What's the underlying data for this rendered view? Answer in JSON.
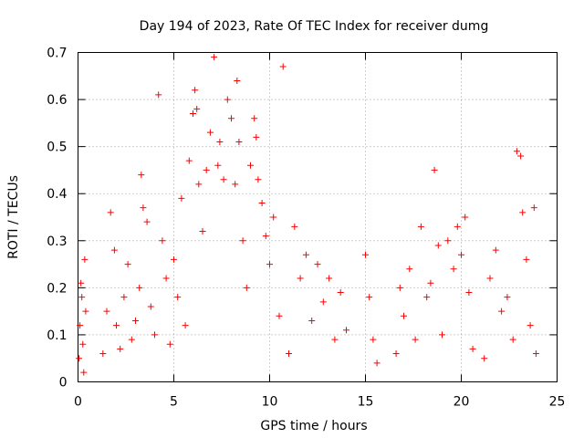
{
  "chart_data": {
    "type": "scatter",
    "title": "Day 194 of 2023, Rate Of TEC Index for receiver dumg",
    "xlabel": "GPS time / hours",
    "ylabel": "ROTI / TECUs",
    "xlim": [
      0,
      25
    ],
    "ylim": [
      0,
      0.7
    ],
    "xticks": [
      "0",
      "5",
      "10",
      "15",
      "20",
      "25"
    ],
    "yticks": [
      "0",
      "0.1",
      "0.2",
      "0.3",
      "0.4",
      "0.5",
      "0.6",
      "0.7"
    ],
    "grid": true,
    "marker": "+",
    "color": "#ff0000",
    "series": [
      {
        "points": [
          [
            0.05,
            0.05
          ],
          [
            0.1,
            0.12
          ],
          [
            0.15,
            0.21
          ],
          [
            0.2,
            0.18
          ],
          [
            0.25,
            0.08
          ],
          [
            0.3,
            0.02
          ],
          [
            0.35,
            0.26
          ],
          [
            0.4,
            0.15
          ],
          [
            1.3,
            0.06
          ],
          [
            1.5,
            0.15
          ],
          [
            1.7,
            0.36
          ],
          [
            1.9,
            0.28
          ],
          [
            2.0,
            0.12
          ],
          [
            2.2,
            0.07
          ],
          [
            2.4,
            0.18
          ],
          [
            2.6,
            0.25
          ],
          [
            2.8,
            0.09
          ],
          [
            3.0,
            0.13
          ],
          [
            3.2,
            0.2
          ],
          [
            3.3,
            0.44
          ],
          [
            3.4,
            0.37
          ],
          [
            3.6,
            0.34
          ],
          [
            3.8,
            0.16
          ],
          [
            4.0,
            0.1
          ],
          [
            4.2,
            0.61
          ],
          [
            4.4,
            0.3
          ],
          [
            4.6,
            0.22
          ],
          [
            4.8,
            0.08
          ],
          [
            5.0,
            0.26
          ],
          [
            5.2,
            0.18
          ],
          [
            5.4,
            0.39
          ],
          [
            5.6,
            0.12
          ],
          [
            5.8,
            0.47
          ],
          [
            6.0,
            0.57
          ],
          [
            6.1,
            0.62
          ],
          [
            6.2,
            0.58
          ],
          [
            6.3,
            0.42
          ],
          [
            6.5,
            0.32
          ],
          [
            6.7,
            0.45
          ],
          [
            6.9,
            0.53
          ],
          [
            7.1,
            0.69
          ],
          [
            7.3,
            0.46
          ],
          [
            7.4,
            0.51
          ],
          [
            7.6,
            0.43
          ],
          [
            7.8,
            0.6
          ],
          [
            8.0,
            0.56
          ],
          [
            8.2,
            0.42
          ],
          [
            8.3,
            0.64
          ],
          [
            8.4,
            0.51
          ],
          [
            8.6,
            0.3
          ],
          [
            8.8,
            0.2
          ],
          [
            9.0,
            0.46
          ],
          [
            9.2,
            0.56
          ],
          [
            9.3,
            0.52
          ],
          [
            9.4,
            0.43
          ],
          [
            9.6,
            0.38
          ],
          [
            9.8,
            0.31
          ],
          [
            10.0,
            0.25
          ],
          [
            10.2,
            0.35
          ],
          [
            10.5,
            0.14
          ],
          [
            10.7,
            0.67
          ],
          [
            11.0,
            0.06
          ],
          [
            11.3,
            0.33
          ],
          [
            11.6,
            0.22
          ],
          [
            11.9,
            0.27
          ],
          [
            12.2,
            0.13
          ],
          [
            12.5,
            0.25
          ],
          [
            12.8,
            0.17
          ],
          [
            13.1,
            0.22
          ],
          [
            13.4,
            0.09
          ],
          [
            13.7,
            0.19
          ],
          [
            14.0,
            0.11
          ],
          [
            15.0,
            0.27
          ],
          [
            15.2,
            0.18
          ],
          [
            15.4,
            0.09
          ],
          [
            15.6,
            0.04
          ],
          [
            16.6,
            0.06
          ],
          [
            16.8,
            0.2
          ],
          [
            17.0,
            0.14
          ],
          [
            17.3,
            0.24
          ],
          [
            17.6,
            0.09
          ],
          [
            17.9,
            0.33
          ],
          [
            18.2,
            0.18
          ],
          [
            18.4,
            0.21
          ],
          [
            18.6,
            0.45
          ],
          [
            18.8,
            0.29
          ],
          [
            19.0,
            0.1
          ],
          [
            19.3,
            0.3
          ],
          [
            19.6,
            0.24
          ],
          [
            19.8,
            0.33
          ],
          [
            20.0,
            0.27
          ],
          [
            20.2,
            0.35
          ],
          [
            20.4,
            0.19
          ],
          [
            20.6,
            0.07
          ],
          [
            21.2,
            0.05
          ],
          [
            21.5,
            0.22
          ],
          [
            21.8,
            0.28
          ],
          [
            22.1,
            0.15
          ],
          [
            22.4,
            0.18
          ],
          [
            22.7,
            0.09
          ],
          [
            22.9,
            0.49
          ],
          [
            23.1,
            0.48
          ],
          [
            23.2,
            0.36
          ],
          [
            23.4,
            0.26
          ],
          [
            23.6,
            0.12
          ],
          [
            23.8,
            0.37
          ],
          [
            23.9,
            0.06
          ]
        ]
      }
    ]
  }
}
